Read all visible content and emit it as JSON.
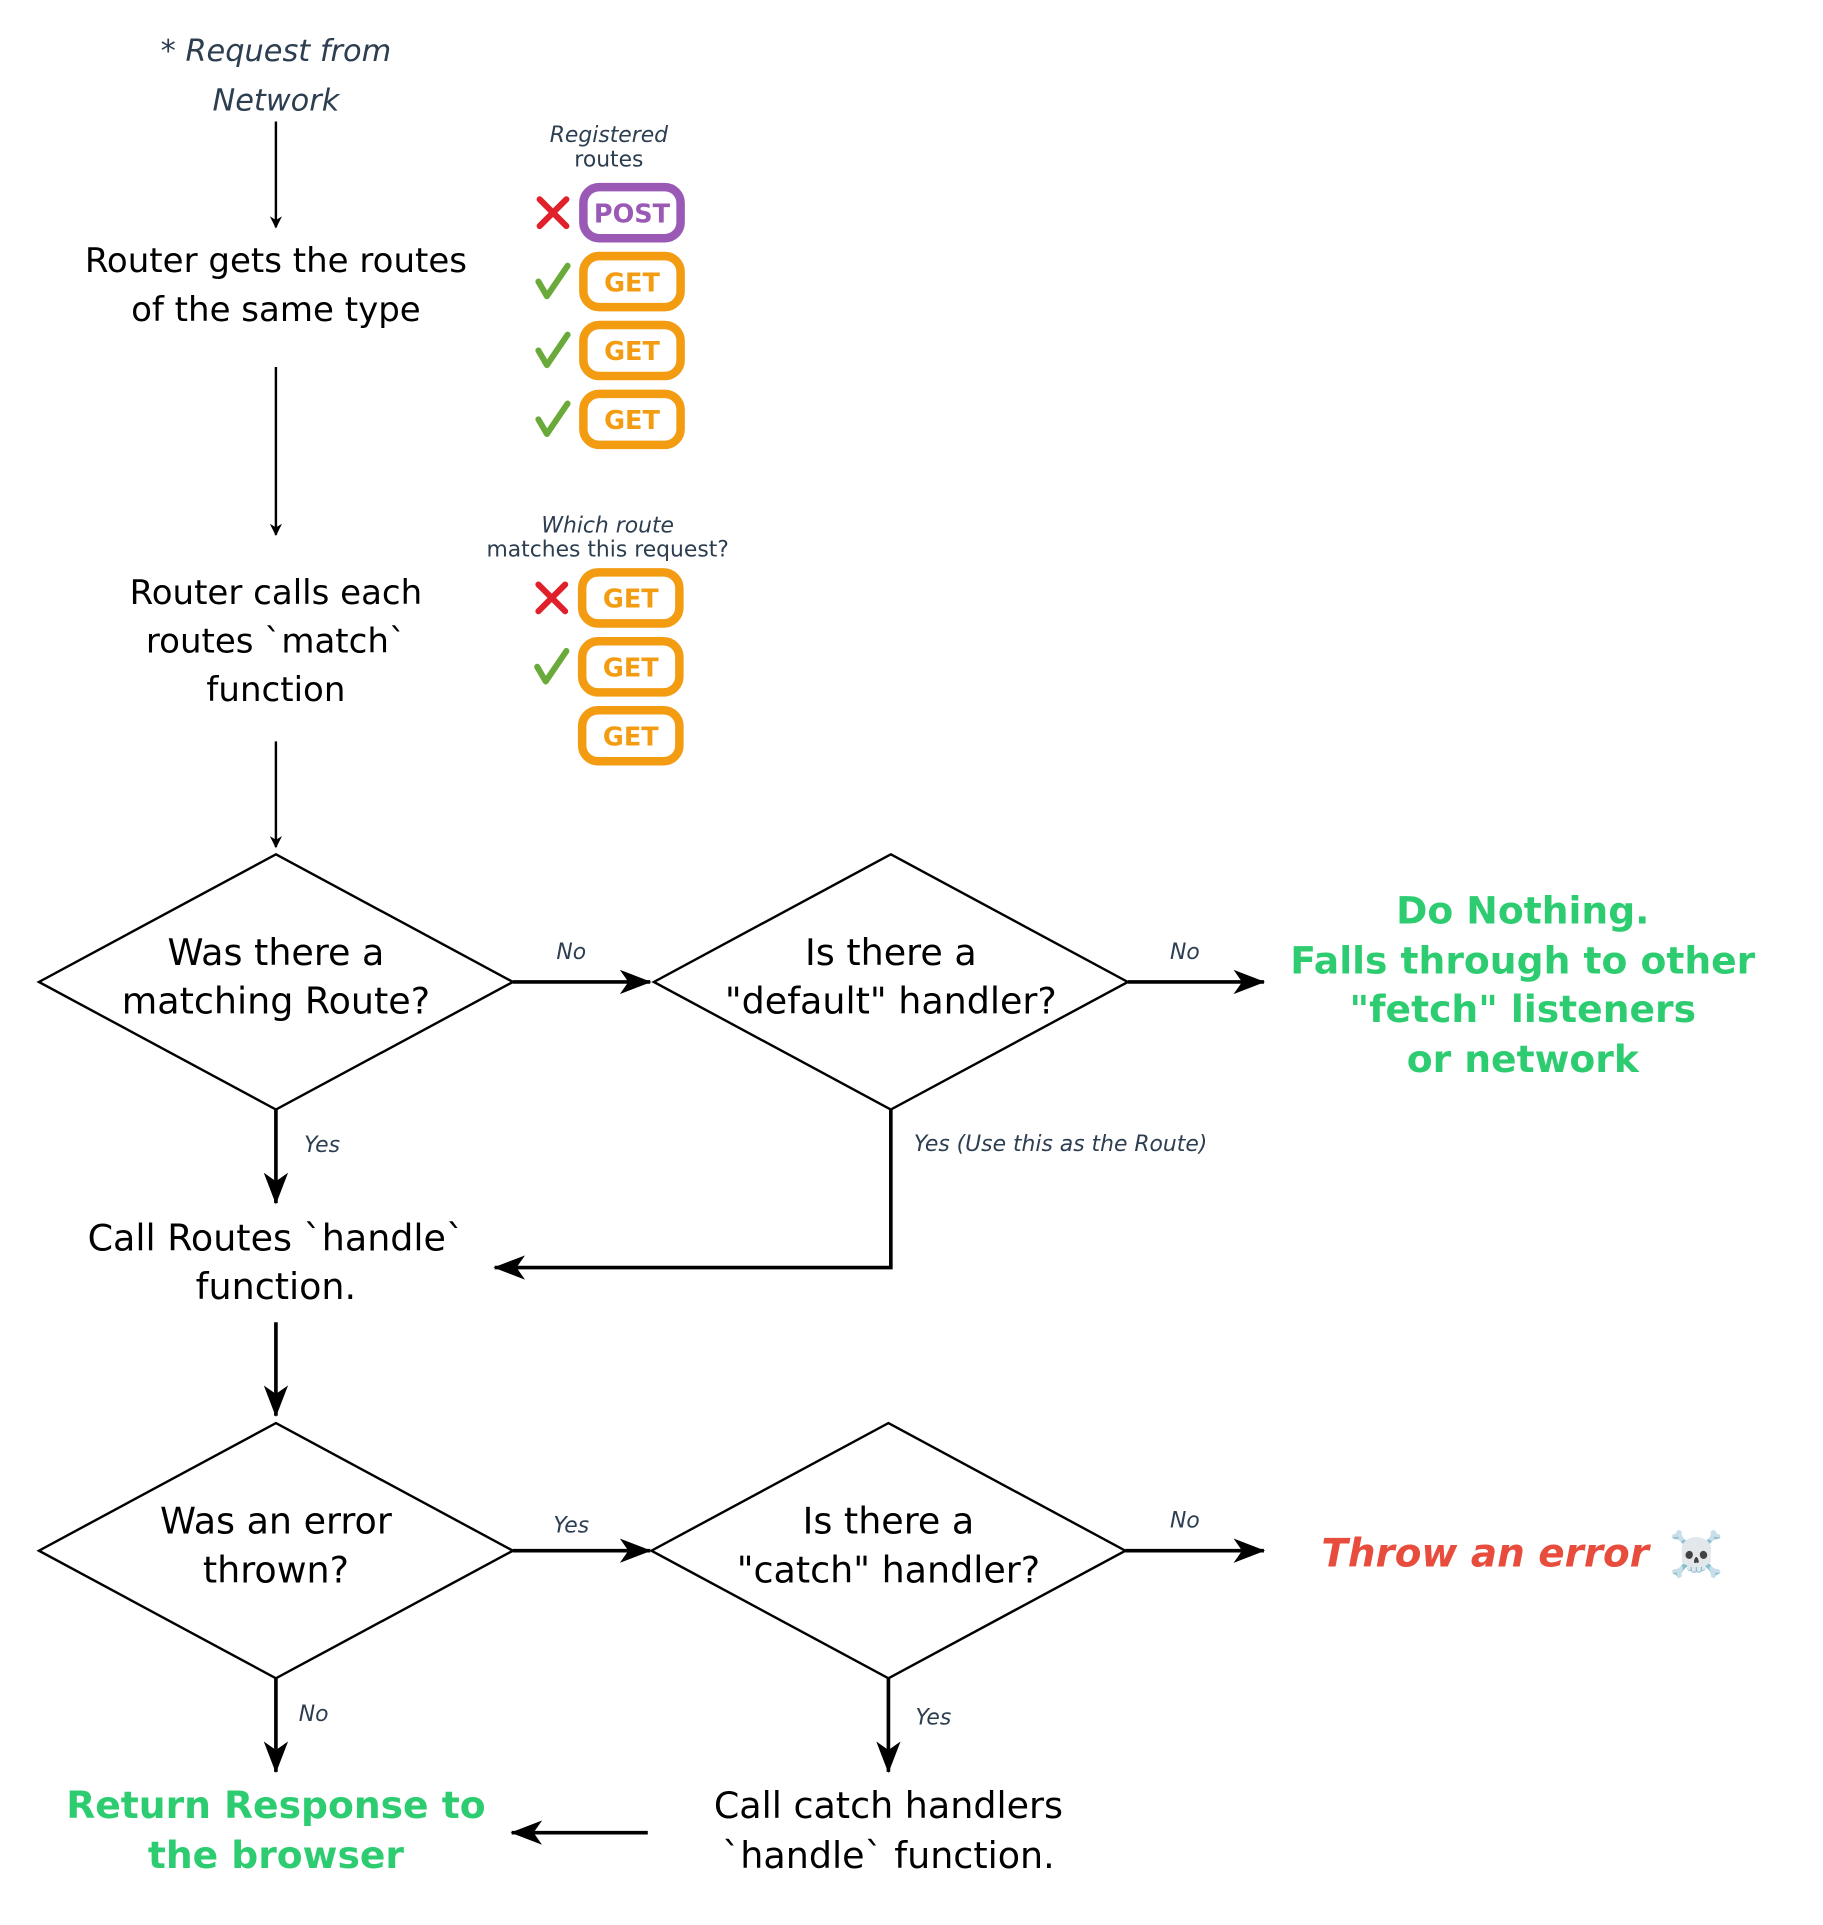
{
  "colors": {
    "get": "#f39c12",
    "post": "#9b59b6",
    "success": "#2ecc71",
    "error": "#e74c3c",
    "label": "#2c3e50",
    "check": "#6aaa3a",
    "cross": "#e0202a"
  },
  "start": {
    "line1": "* Request from",
    "line2": "Network"
  },
  "step_get_routes": {
    "line1": "Router gets the routes",
    "line2": "of the same type"
  },
  "registered": {
    "title_line1": "Registered",
    "title_line2": "routes",
    "routes": [
      {
        "method": "POST",
        "status": "cross-icon"
      },
      {
        "method": "GET",
        "status": "check-icon"
      },
      {
        "method": "GET",
        "status": "check-icon"
      },
      {
        "method": "GET",
        "status": "check-icon"
      }
    ]
  },
  "step_match": {
    "line1": "Router calls each",
    "line2": "routes `match`",
    "line3": "function"
  },
  "matching": {
    "title_line1": "Which route",
    "title_line2": "matches this request?",
    "routes": [
      {
        "method": "GET",
        "status": "cross-icon"
      },
      {
        "method": "GET",
        "status": "check-icon"
      },
      {
        "method": "GET",
        "status": "none"
      }
    ]
  },
  "decision_matching": {
    "line1": "Was there a",
    "line2": "matching Route?",
    "no_label": "No",
    "yes_label": "Yes"
  },
  "decision_default": {
    "line1": "Is there a",
    "line2": "\"default\" handler?",
    "no_label": "No",
    "yes_label": "Yes (Use this as the Route)"
  },
  "do_nothing": {
    "line1": "Do Nothing.",
    "line2": "Falls through to other",
    "line3": "\"fetch\" listeners",
    "line4": "or network"
  },
  "step_handle": {
    "line1": "Call Routes `handle`",
    "line2": "function."
  },
  "decision_error": {
    "line1": "Was an error",
    "line2": "thrown?",
    "yes_label": "Yes",
    "no_label": "No"
  },
  "decision_catch": {
    "line1": "Is there a",
    "line2": "\"catch\" handler?",
    "no_label": "No",
    "yes_label": "Yes"
  },
  "throw_error": {
    "text": "Throw an error",
    "icon": "☠️"
  },
  "return_response": {
    "line1": "Return Response to",
    "line2": "the browser"
  },
  "step_catch": {
    "line1": "Call catch handlers",
    "line2": "`handle` function."
  }
}
